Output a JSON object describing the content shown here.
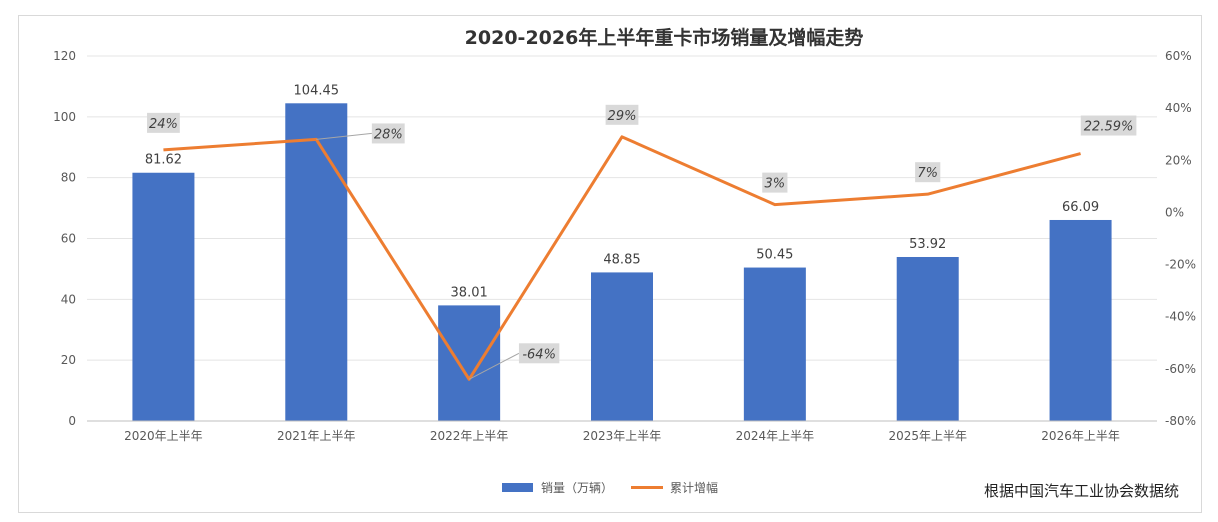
{
  "chart_data": {
    "type": "bar",
    "title": "2020-2026年上半年重卡市场销量及增幅走势",
    "categories": [
      "2020年上半年",
      "2021年上半年",
      "2022年上半年",
      "2023年上半年",
      "2024年上半年",
      "2025年上半年",
      "2026年上半年"
    ],
    "series": [
      {
        "name": "销量（万辆）",
        "type": "bar",
        "axis": "left",
        "color": "#4472c4",
        "values": [
          81.62,
          104.45,
          38.01,
          48.85,
          50.45,
          53.92,
          66.09
        ],
        "labels": [
          "81.62",
          "104.45",
          "38.01",
          "48.85",
          "50.45",
          "53.92",
          "66.09"
        ]
      },
      {
        "name": "累计增幅",
        "type": "line",
        "axis": "right",
        "color": "#ed7d31",
        "values": [
          24,
          28,
          -64,
          29,
          3,
          7,
          22.59
        ],
        "labels": [
          "24%",
          "28%",
          "-64%",
          "29%",
          "3%",
          "7%",
          "22.59%"
        ]
      }
    ],
    "y_left": {
      "ylim": [
        0,
        120
      ],
      "ticks": [
        "0",
        "20",
        "40",
        "60",
        "80",
        "100",
        "120"
      ]
    },
    "y_right": {
      "ylim": [
        -80,
        60
      ],
      "ticks": [
        "-80%",
        "-60%",
        "-40%",
        "-20%",
        "0%",
        "20%",
        "40%",
        "60%"
      ]
    },
    "grid": true,
    "legend_position": "bottom",
    "source_note": "根据中国汽车工业协会数据统"
  }
}
